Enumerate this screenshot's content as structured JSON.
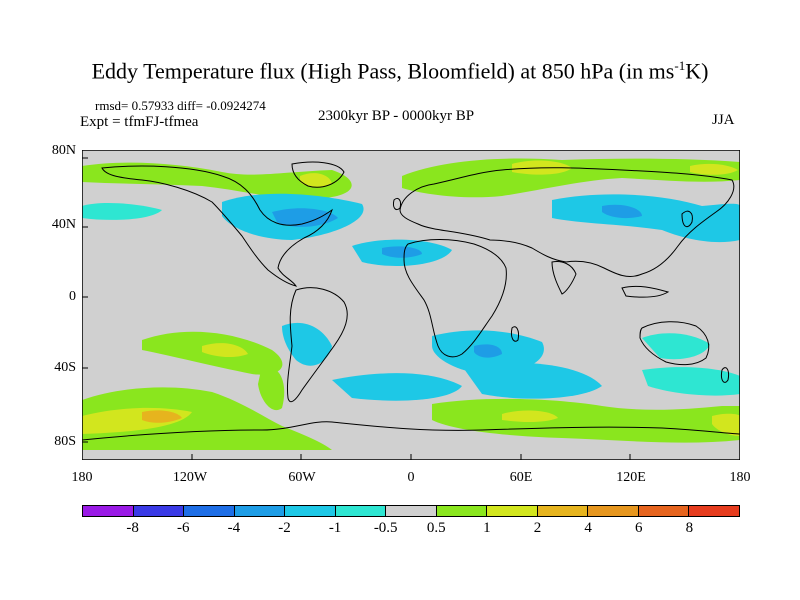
{
  "title_main": "Eddy Temperature flux (High Pass, Bloomfield) at 850 hPa (in ms",
  "title_sup": "-1",
  "title_end": "K)",
  "stats": "rmsd= 0.57933 diff= -0.0924274",
  "expt": "Expt = tfmFJ-tfmea",
  "period": "2300kyr BP - 0000kyr BP",
  "season": "JJA",
  "y_ticks": [
    "80N",
    "40N",
    "0",
    "40S",
    "80S"
  ],
  "x_ticks": [
    "180",
    "120W",
    "60W",
    "0",
    "60E",
    "120E",
    "180"
  ],
  "colorbar": {
    "colors": [
      "#9a1ae6",
      "#3a3ae6",
      "#1e6ee6",
      "#1e9de6",
      "#1ec8e6",
      "#2ee6d2",
      "#d0d0d0",
      "#8ae61e",
      "#d2e61e",
      "#e6b41e",
      "#e6961e",
      "#e6641e",
      "#e63c1e"
    ],
    "labels": [
      "-8",
      "-6",
      "-4",
      "-2",
      "-1",
      "-0.5",
      "0.5",
      "1",
      "2",
      "4",
      "6",
      "8"
    ]
  },
  "colors": {
    "ocean_land_neutral": "#d0d0d0",
    "coast": "#000000"
  }
}
